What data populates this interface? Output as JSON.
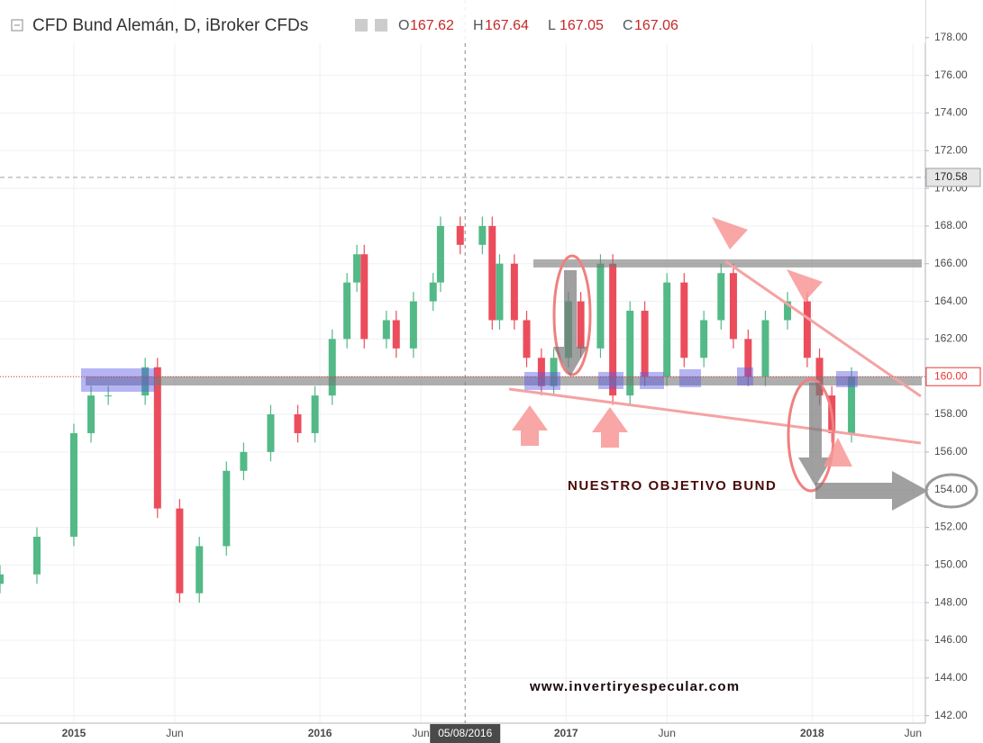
{
  "chart_data": {
    "type": "candlestick",
    "title": "CFD Bund Alemán, D, iBroker CFDs",
    "quote": [
      {
        "name": "O",
        "value": 167.62
      },
      {
        "name": "H",
        "value": 167.64
      },
      {
        "name": "L",
        "value": 167.05
      },
      {
        "name": "C",
        "value": 167.06
      }
    ],
    "x": [
      2014.7,
      2014.85,
      2015.0,
      2015.07,
      2015.14,
      2015.29,
      2015.34,
      2015.43,
      2015.51,
      2015.62,
      2015.69,
      2015.8,
      2015.91,
      2015.98,
      2016.05,
      2016.11,
      2016.15,
      2016.18,
      2016.27,
      2016.31,
      2016.38,
      2016.46,
      2016.49,
      2016.57,
      2016.66,
      2016.7,
      2016.73,
      2016.79,
      2016.84,
      2016.9,
      2016.95,
      2017.01,
      2017.06,
      2017.14,
      2017.19,
      2017.26,
      2017.32,
      2017.41,
      2017.48,
      2017.56,
      2017.63,
      2017.68,
      2017.74,
      2017.81,
      2017.9,
      2017.98,
      2018.03,
      2018.08,
      2018.16
    ],
    "open": [
      149,
      149.5,
      151.5,
      157,
      159,
      159,
      160.5,
      153,
      148.5,
      151,
      155,
      156,
      158,
      157,
      159,
      162,
      165,
      166.5,
      162,
      163,
      161.5,
      164,
      165,
      168,
      167,
      168,
      163,
      166,
      163,
      161,
      159.5,
      161,
      164,
      161.5,
      166,
      159,
      163.5,
      160,
      165,
      161,
      163,
      165.5,
      162,
      160,
      163,
      164,
      161,
      159,
      157
    ],
    "high": [
      150,
      152,
      157.5,
      159.5,
      159.5,
      161,
      161,
      153.5,
      151.5,
      155.5,
      156.5,
      158.5,
      158.5,
      159.5,
      162.5,
      165.5,
      167,
      167,
      163.5,
      163.5,
      164.5,
      165.5,
      168.5,
      168.5,
      168.5,
      168.5,
      166.5,
      166.5,
      163.5,
      161.5,
      161.5,
      164.5,
      164.5,
      166.5,
      166.5,
      164,
      164,
      165.5,
      165.5,
      163.5,
      166,
      166,
      162.5,
      163.5,
      164.5,
      164.5,
      161.5,
      159.5,
      160.5
    ],
    "low": [
      148.5,
      149,
      151,
      156.5,
      158.5,
      158.5,
      152.5,
      148,
      148,
      150.5,
      154.5,
      155.5,
      156.5,
      156.5,
      158.5,
      161.5,
      164.5,
      161.5,
      161.5,
      161,
      161,
      163.5,
      164.5,
      166.5,
      166.5,
      162.5,
      162.5,
      162.5,
      160.5,
      159,
      159,
      160.5,
      161,
      161,
      158.5,
      158.5,
      159.5,
      159.5,
      160.5,
      160.5,
      162.5,
      161.5,
      159.5,
      159.5,
      162.5,
      160.5,
      158.5,
      156.5,
      156.5
    ],
    "close": [
      149.5,
      151.5,
      157,
      159,
      159,
      160.5,
      153,
      148.5,
      151,
      155,
      156,
      158,
      157,
      159,
      162,
      165,
      166.5,
      162,
      163,
      161.5,
      164,
      165,
      168,
      167,
      168,
      163,
      166,
      163,
      161,
      159.5,
      161,
      164,
      161.5,
      166,
      159,
      163.5,
      160,
      165,
      161,
      163,
      165.5,
      162,
      160,
      163,
      164,
      161,
      159,
      157,
      160
    ],
    "up_color": "#53b987",
    "down_color": "#eb4d5c",
    "xlim": [
      2014.7,
      2018.46
    ],
    "xticks": [
      {
        "value": 2015,
        "label": "2015"
      },
      {
        "value": 2015.41,
        "label": "Jun"
      },
      {
        "value": 2016,
        "label": "2016"
      },
      {
        "value": 2016.41,
        "label": "Jun"
      },
      {
        "value": 2017,
        "label": "2017"
      },
      {
        "value": 2017.41,
        "label": "Jun"
      },
      {
        "value": 2018,
        "label": "2018"
      },
      {
        "value": 2018.41,
        "label": "Jun"
      }
    ],
    "ylim": [
      141.6,
      180
    ],
    "yticks": [
      {
        "value": 142,
        "label": "142.00"
      },
      {
        "value": 144,
        "label": "144.00"
      },
      {
        "value": 146,
        "label": "146.00"
      },
      {
        "value": 148,
        "label": "148.00"
      },
      {
        "value": 150,
        "label": "150.00"
      },
      {
        "value": 152,
        "label": "152.00"
      },
      {
        "value": 154,
        "label": "154.00"
      },
      {
        "value": 156,
        "label": "156.00"
      },
      {
        "value": 158,
        "label": "158.00"
      },
      {
        "value": 160,
        "label": "160.00"
      },
      {
        "value": 162,
        "label": "162.00"
      },
      {
        "value": 164,
        "label": "164.00"
      },
      {
        "value": 166,
        "label": "166.00"
      },
      {
        "value": 168,
        "label": "168.00"
      },
      {
        "value": 170,
        "label": "170.00"
      },
      {
        "value": 172,
        "label": "172.00"
      },
      {
        "value": 174,
        "label": "174.00"
      },
      {
        "value": 176,
        "label": "176.00"
      },
      {
        "value": 178,
        "label": "178.00"
      }
    ],
    "grid": true,
    "price_lines": [
      {
        "value": 170.58,
        "label": "170.58",
        "style": "dashed",
        "color": "#9e9e9e"
      },
      {
        "value": 160,
        "label": "160.00",
        "style": "dotted",
        "color": "#e53935"
      }
    ],
    "crosshair": {
      "x": 2016.59,
      "label": "05/08/2016"
    },
    "annotations": [
      "NUESTRO OBJETIVO BUND",
      "www.invertiryespecular.com"
    ]
  }
}
